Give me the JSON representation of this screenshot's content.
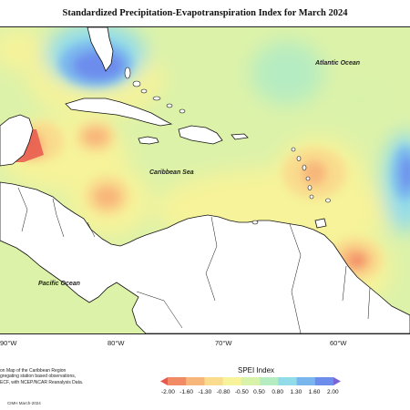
{
  "title": "Standardized Precipitation-Evapotranspiration Index for March 2024",
  "labels": {
    "atlantic": "Atlantic Ocean",
    "caribbean": "Caribbean Sea",
    "pacific": "Pacific Ocean"
  },
  "longitude_ticks": [
    "90°W",
    "80°W",
    "70°W",
    "60°W"
  ],
  "legend": {
    "title": "SPEI Index",
    "ticks": [
      "-2.00",
      "-1.60",
      "-1.30",
      "-0.80",
      "-0.50",
      "0.50",
      "0.80",
      "1.30",
      "1.60",
      "2.00"
    ],
    "colors": [
      "#e8584e",
      "#f38a66",
      "#f8b77a",
      "#f9dc8e",
      "#f6f39a",
      "#d9f2aa",
      "#b6ecc1",
      "#92dcea",
      "#7ab6ee",
      "#6d8ded",
      "#7a63d8"
    ]
  },
  "note_lines": [
    "on Map of the Caribbean Region",
    "gregating station based observations,",
    "ECF, with NCEP/NCAR Reanalysis Data."
  ],
  "credit": "CIMH March-2024"
}
